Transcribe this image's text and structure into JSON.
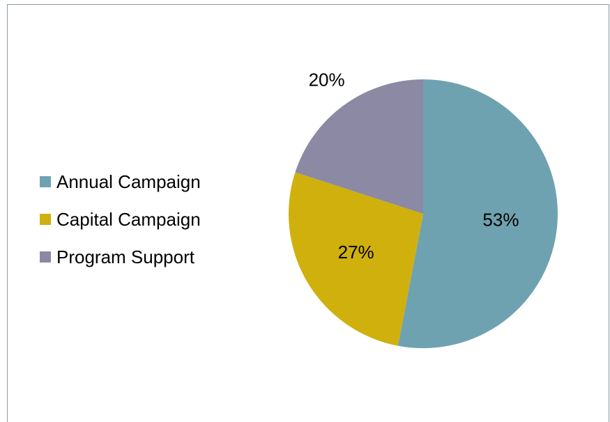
{
  "chart_data": {
    "type": "pie",
    "categories": [
      "Annual Campaign",
      "Capital Campaign",
      "Program Support"
    ],
    "values": [
      53,
      27,
      20
    ],
    "data_labels": [
      "53%",
      "27%",
      "20%"
    ],
    "colors": [
      "#6fa2b1",
      "#cfb00d",
      "#8b89a3"
    ],
    "legend_position": "left",
    "title": ""
  }
}
